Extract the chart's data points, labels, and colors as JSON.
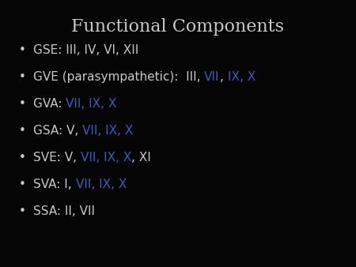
{
  "title": "Functional Components",
  "title_color": "#c8c8c8",
  "background_color": "#050505",
  "bullet_color": "#c8c8c8",
  "title_fontsize": 16,
  "bullet_fontsize": 11,
  "lines": [
    {
      "segments": [
        {
          "text": "GSE: III, IV, VI, XII",
          "color": "#c8c8c8"
        }
      ]
    },
    {
      "segments": [
        {
          "text": "GVE (parasympathetic):  III, ",
          "color": "#c8c8c8"
        },
        {
          "text": "VII",
          "color": "#3a5cbf"
        },
        {
          "text": ", ",
          "color": "#c8c8c8"
        },
        {
          "text": "IX, X",
          "color": "#3a5cbf"
        }
      ]
    },
    {
      "segments": [
        {
          "text": "GVA: ",
          "color": "#c8c8c8"
        },
        {
          "text": "VII, IX, X",
          "color": "#3a5cbf"
        }
      ]
    },
    {
      "segments": [
        {
          "text": "GSA: V, ",
          "color": "#c8c8c8"
        },
        {
          "text": "VII, IX, X",
          "color": "#3a5cbf"
        }
      ]
    },
    {
      "segments": [
        {
          "text": "SVE: V, ",
          "color": "#c8c8c8"
        },
        {
          "text": "VII, IX, X",
          "color": "#3a5cbf"
        },
        {
          "text": ", XI",
          "color": "#c8c8c8"
        }
      ]
    },
    {
      "segments": [
        {
          "text": "SVA: I, ",
          "color": "#c8c8c8"
        },
        {
          "text": "VII, IX, X",
          "color": "#3a5cbf"
        }
      ]
    },
    {
      "segments": [
        {
          "text": "SSA: II, VII",
          "color": "#c8c8c8"
        }
      ]
    }
  ],
  "bullet_char": "•",
  "fig_width": 4.5,
  "fig_height": 3.38,
  "fig_dpi": 100
}
